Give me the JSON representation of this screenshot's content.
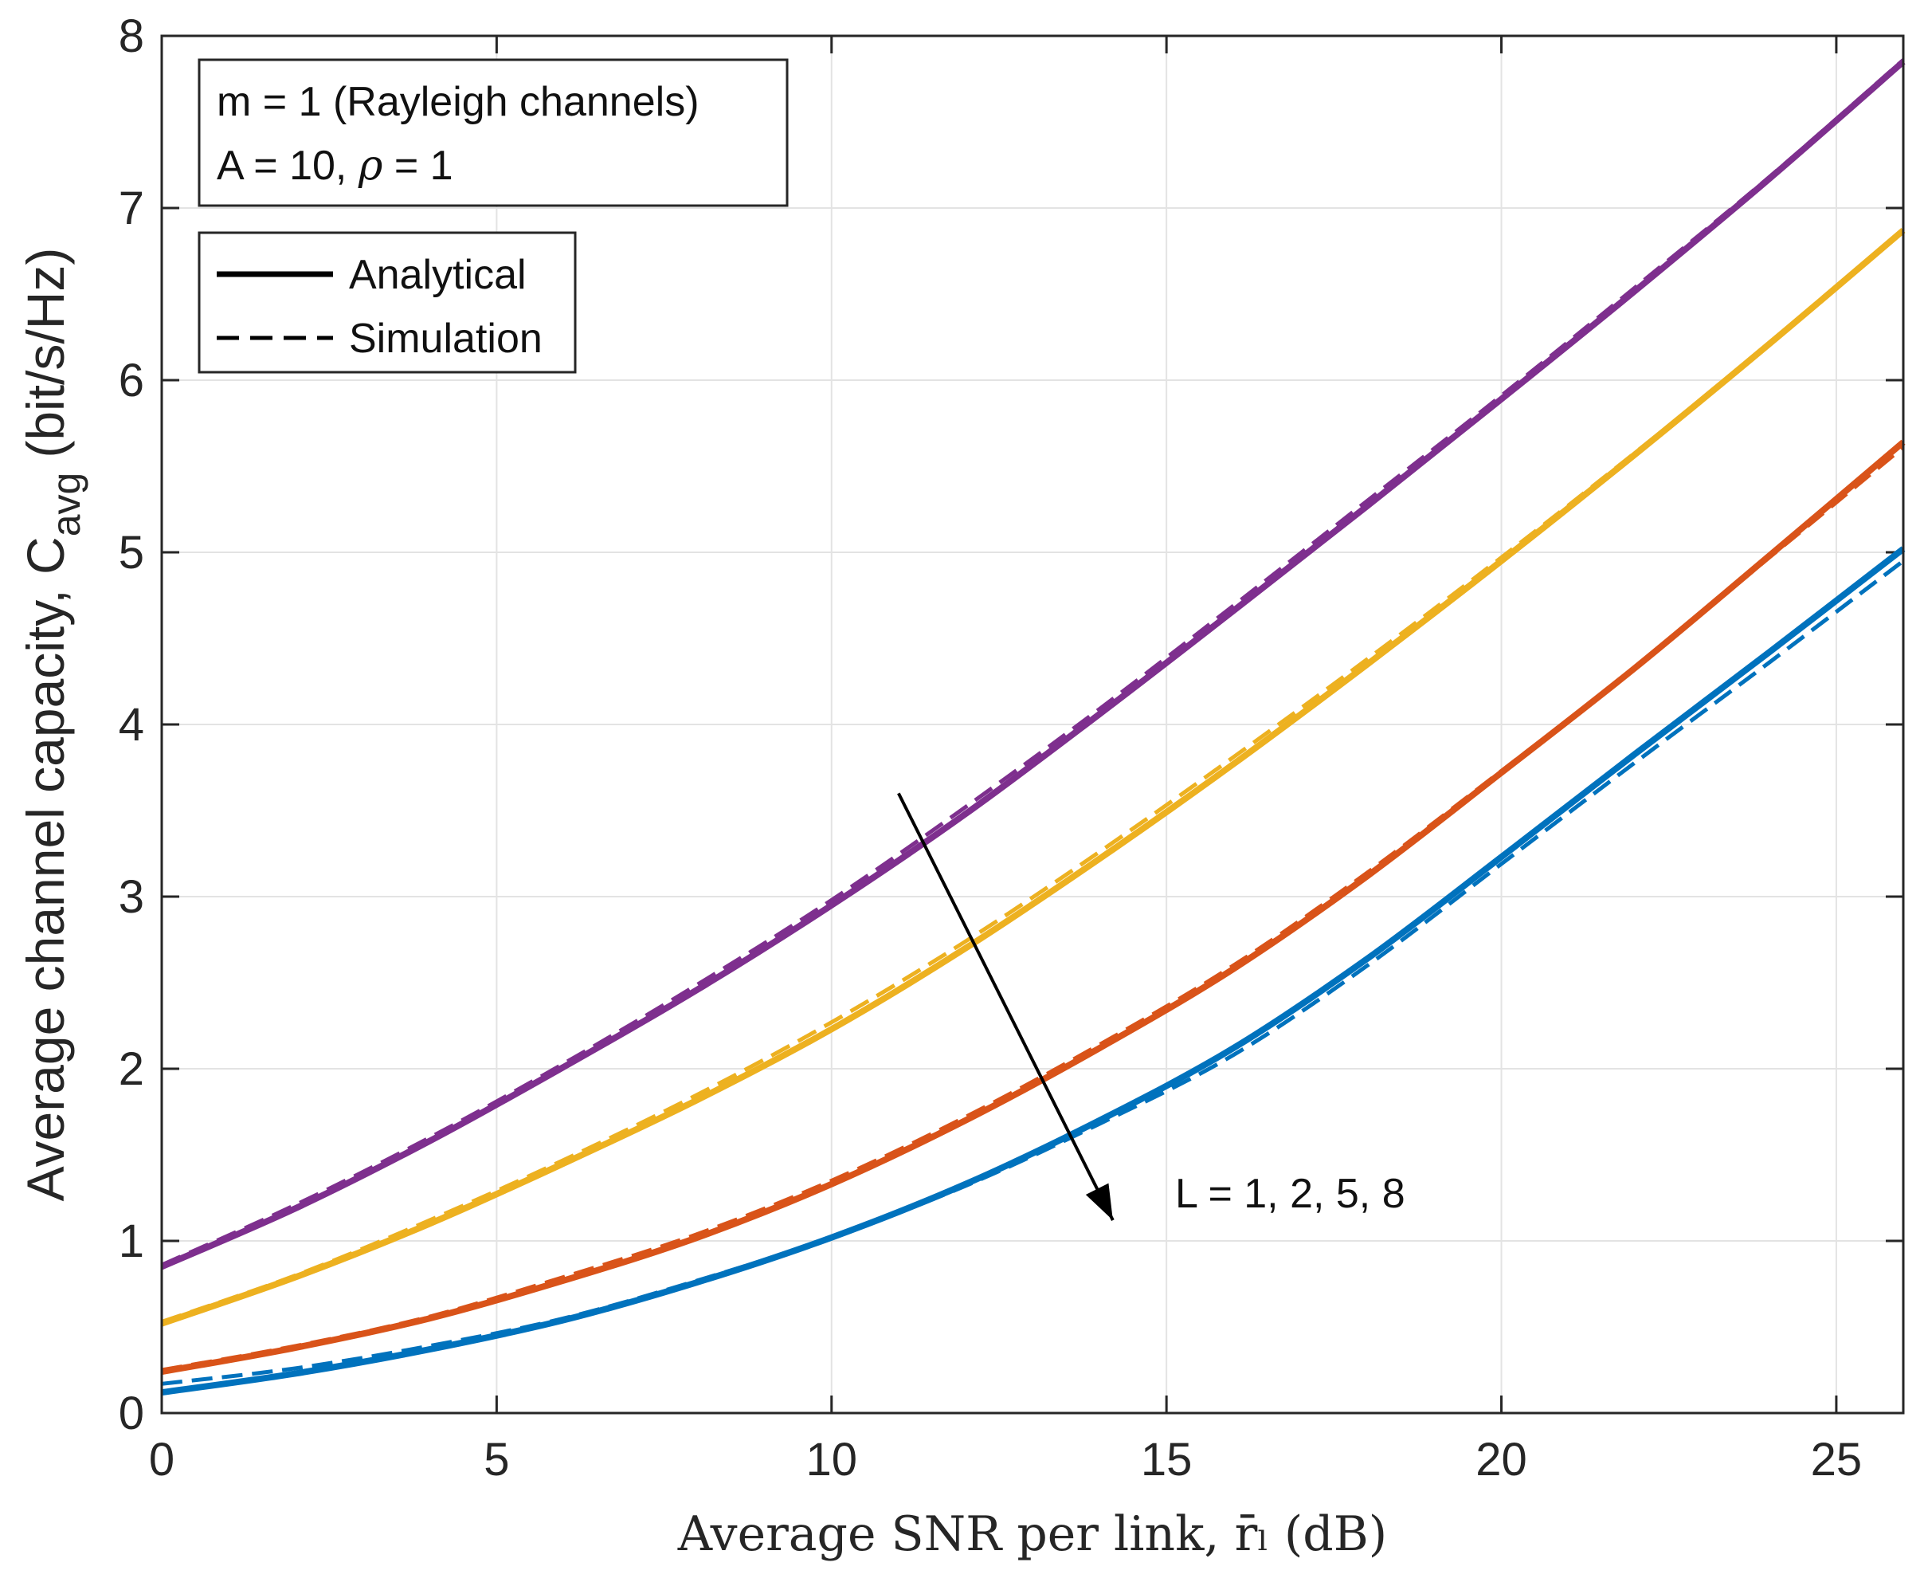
{
  "chart_data": {
    "type": "line",
    "title": "",
    "xlabel": "Average SNR per link, r̄ₗ (dB)",
    "ylabel": "Average channel capacity, C",
    "ylabel_subscript": "avg",
    "ylabel_units": "(bit/s/Hz)",
    "xlim": [
      0,
      26
    ],
    "ylim": [
      0,
      8
    ],
    "xticks": [
      0,
      5,
      10,
      15,
      20,
      25
    ],
    "yticks": [
      0,
      1,
      2,
      3,
      4,
      5,
      6,
      7,
      8
    ],
    "grid": true,
    "x": [
      0,
      2,
      4,
      6,
      8,
      10,
      12,
      14,
      16,
      18,
      20,
      22,
      24,
      26
    ],
    "series": [
      {
        "name": "L = 1",
        "color": "#0072BD",
        "analytical": [
          0.12,
          0.23,
          0.37,
          0.54,
          0.76,
          1.02,
          1.33,
          1.7,
          2.12,
          2.64,
          3.23,
          3.83,
          4.42,
          5.02
        ],
        "simulation": [
          0.17,
          0.26,
          0.39,
          0.55,
          0.77,
          1.02,
          1.32,
          1.68,
          2.08,
          2.6,
          3.19,
          3.78,
          4.36,
          4.95
        ]
      },
      {
        "name": "L = 2",
        "color": "#D95319",
        "analytical": [
          0.24,
          0.38,
          0.55,
          0.77,
          1.02,
          1.33,
          1.7,
          2.12,
          2.58,
          3.12,
          3.72,
          4.33,
          4.98,
          5.64
        ],
        "simulation": [
          0.25,
          0.39,
          0.56,
          0.79,
          1.04,
          1.35,
          1.72,
          2.14,
          2.6,
          3.14,
          3.73,
          4.33,
          4.97,
          5.61
        ]
      },
      {
        "name": "L = 5",
        "color": "#EDB120",
        "analytical": [
          0.52,
          0.79,
          1.1,
          1.45,
          1.82,
          2.23,
          2.7,
          3.22,
          3.77,
          4.35,
          4.95,
          5.57,
          6.21,
          6.87
        ],
        "simulation": [
          0.53,
          0.8,
          1.12,
          1.47,
          1.85,
          2.27,
          2.74,
          3.26,
          3.81,
          4.38,
          4.97,
          5.58,
          6.21,
          6.87
        ]
      },
      {
        "name": "L = 8",
        "color": "#7E2F8E",
        "analytical": [
          0.85,
          1.19,
          1.58,
          2.01,
          2.46,
          2.95,
          3.48,
          4.06,
          4.66,
          5.27,
          5.89,
          6.52,
          7.17,
          7.85
        ],
        "simulation": [
          0.86,
          1.21,
          1.6,
          2.03,
          2.49,
          2.98,
          3.52,
          4.09,
          4.69,
          5.3,
          5.91,
          6.54,
          7.18,
          7.86
        ]
      }
    ],
    "legend": {
      "placement": "top-left",
      "entries": [
        {
          "label": "Analytical",
          "style": "solid"
        },
        {
          "label": "Simulation",
          "style": "dashed"
        }
      ]
    },
    "info_box": {
      "line1": "m = 1 (Rayleigh channels)",
      "line2_prefix": "A = 10, ",
      "line2_symbol": "ρ",
      "line2_suffix": " = 1"
    },
    "annotation": {
      "text": "L = 1, 2, 5, 8",
      "arrow_from": [
        11.0,
        3.6
      ],
      "arrow_to": [
        14.2,
        1.12
      ]
    }
  }
}
